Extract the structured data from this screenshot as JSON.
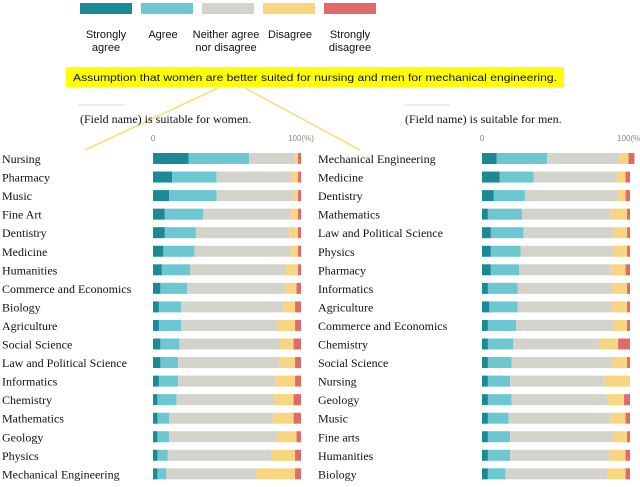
{
  "legend": {
    "items": [
      {
        "label_lines": [
          "Strongly",
          "agree"
        ],
        "color": "#1b8a96"
      },
      {
        "label_lines": [
          "Agree"
        ],
        "color": "#6cc7d0"
      },
      {
        "label_lines": [
          "Neither agree",
          "nor disagree"
        ],
        "color": "#d3d3cc"
      },
      {
        "label_lines": [
          "Disagree"
        ],
        "color": "#f8d580"
      },
      {
        "label_lines": [
          "Strongly",
          "disagree"
        ],
        "color": "#e06a68"
      }
    ]
  },
  "banner": {
    "text": "Assumption that women are better suited for nursing and men for mechanical engineering.",
    "color": "#ffff00"
  },
  "chart_data": [
    {
      "type": "bar",
      "orientation": "horizontal",
      "stacked": true,
      "title": "(Field name) is suitable for women.",
      "ticks": [
        {
          "value": 0,
          "label": "0"
        },
        {
          "value": 100,
          "label": "100(%)"
        }
      ],
      "xlim": [
        0,
        100
      ],
      "series_names": [
        "Strongly agree",
        "Agree",
        "Neither agree nor disagree",
        "Disagree",
        "Strongly disagree"
      ],
      "categories": [
        "Nursing",
        "Pharmacy",
        "Music",
        "Fine Art",
        "Dentistry",
        "Medicine",
        "Humanities",
        "Commerce and Economics",
        "Biology",
        "Agriculture",
        "Social Science",
        "Law and Political Science",
        "Informatics",
        "Chemistry",
        "Mathematics",
        "Geology",
        "Physics",
        "Mechanical Engineering"
      ],
      "values": [
        [
          24,
          41,
          31,
          2,
          2
        ],
        [
          13,
          30,
          51,
          4,
          2
        ],
        [
          11,
          32,
          52,
          3,
          2
        ],
        [
          8,
          26,
          59,
          5,
          2
        ],
        [
          8,
          21,
          63,
          6,
          2
        ],
        [
          7,
          21,
          65,
          5,
          2
        ],
        [
          6,
          19,
          65,
          8,
          2
        ],
        [
          5,
          18,
          66,
          8,
          3
        ],
        [
          4,
          15,
          69,
          8,
          4
        ],
        [
          4,
          15,
          65,
          12,
          4
        ],
        [
          5,
          13,
          68,
          9,
          5
        ],
        [
          5,
          12,
          68,
          11,
          4
        ],
        [
          4,
          13,
          66,
          13,
          4
        ],
        [
          3,
          13,
          66,
          13,
          5
        ],
        [
          3,
          8,
          70,
          14,
          5
        ],
        [
          3,
          8,
          73,
          13,
          3
        ],
        [
          3,
          7,
          70,
          16,
          4
        ],
        [
          3,
          6,
          61,
          26,
          4
        ]
      ]
    },
    {
      "type": "bar",
      "orientation": "horizontal",
      "stacked": true,
      "title": "(Field name) is suitable for men.",
      "ticks": [
        {
          "value": 0,
          "label": "0"
        },
        {
          "value": 100,
          "label": "100(%)"
        }
      ],
      "xlim": [
        0,
        100
      ],
      "series_names": [
        "Strongly agree",
        "Agree",
        "Neither agree nor disagree",
        "Disagree",
        "Strongly disagree"
      ],
      "categories": [
        "Mechanical Engineering",
        "Medicine",
        "Dentistry",
        "Mathematics",
        "Law and Political Science",
        "Physics",
        "Pharmacy",
        "Informatics",
        "Agriculture",
        "Commerce and Economics",
        "Chemistry",
        "Social Science",
        "Nursing",
        "Geology",
        "Music",
        "Fine arts",
        "Humanities",
        "Biology"
      ],
      "values": [
        [
          10,
          34,
          49,
          6,
          4
        ],
        [
          12,
          23,
          56,
          6,
          3
        ],
        [
          8,
          21,
          63,
          5,
          3
        ],
        [
          4,
          23,
          60,
          11,
          2
        ],
        [
          6,
          22,
          61,
          9,
          2
        ],
        [
          6,
          20,
          63,
          9,
          2
        ],
        [
          6,
          19,
          62,
          10,
          3
        ],
        [
          4,
          20,
          64,
          10,
          2
        ],
        [
          5,
          19,
          64,
          10,
          2
        ],
        [
          4,
          19,
          66,
          9,
          2
        ],
        [
          4,
          17,
          58,
          13,
          8
        ],
        [
          4,
          16,
          68,
          10,
          2
        ],
        [
          4,
          15,
          64,
          17,
          0
        ],
        [
          4,
          16,
          65,
          11,
          4
        ],
        [
          4,
          14,
          69,
          10,
          3
        ],
        [
          4,
          15,
          70,
          9,
          2
        ],
        [
          4,
          15,
          67,
          11,
          3
        ],
        [
          4,
          12,
          69,
          12,
          3
        ]
      ]
    }
  ]
}
